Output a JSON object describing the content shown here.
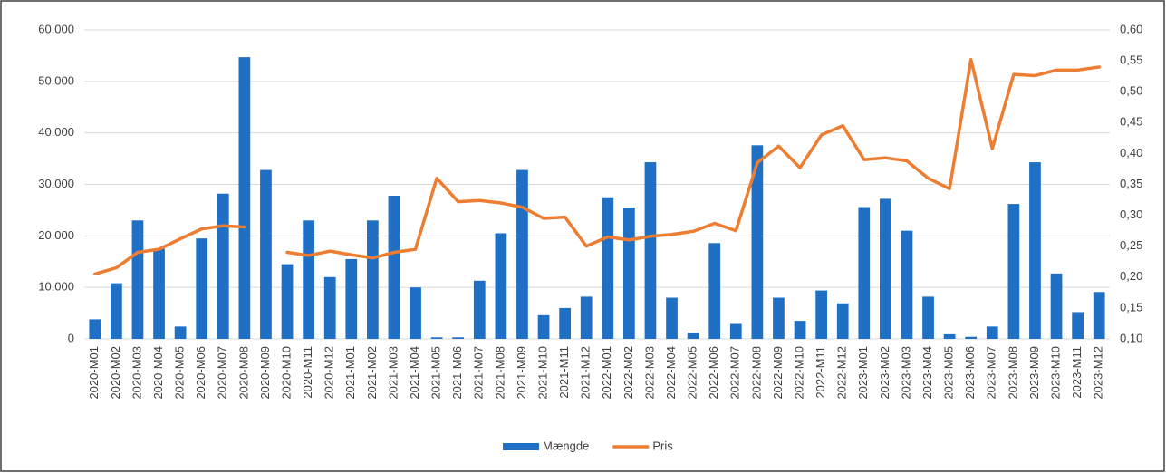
{
  "chart_data": {
    "type": "bar_line",
    "categories": [
      "2020-M01",
      "2020-M02",
      "2020-M03",
      "2020-M04",
      "2020-M05",
      "2020-M06",
      "2020-M07",
      "2020-M08",
      "2020-M09",
      "2020-M10",
      "2020-M11",
      "2020-M12",
      "2021-M01",
      "2021-M02",
      "2021-M03",
      "2021-M04",
      "2021-M05",
      "2021-M06",
      "2021-M07",
      "2021-M08",
      "2021-M09",
      "2021-M10",
      "2021-M11",
      "2021-M12",
      "2022-M01",
      "2022-M02",
      "2022-M03",
      "2022-M04",
      "2022-M05",
      "2022-M06",
      "2022-M07",
      "2022-M08",
      "2022-M09",
      "2022-M10",
      "2022-M11",
      "2022-M12",
      "2023-M01",
      "2023-M02",
      "2023-M03",
      "2023-M04",
      "2023-M05",
      "2023-M06",
      "2023-M07",
      "2023-M08",
      "2023-M09",
      "2023-M10",
      "2023-M11",
      "2023-M12"
    ],
    "series": [
      {
        "name": "Mængde",
        "type": "bar",
        "color": "#1f6fc5",
        "axis": "y",
        "values": [
          3800,
          10800,
          23000,
          17500,
          2400,
          19500,
          28200,
          54700,
          32800,
          14500,
          23000,
          12000,
          15500,
          23000,
          27800,
          10000,
          300,
          300,
          11300,
          20500,
          32800,
          4600,
          6000,
          8200,
          27500,
          25500,
          34300,
          8000,
          1200,
          18600,
          2900,
          37600,
          8000,
          3500,
          9400,
          6900,
          25600,
          27200,
          21000,
          8200,
          900,
          400,
          2400,
          26200,
          34300,
          12700,
          5200,
          9100
        ]
      },
      {
        "name": "Pris",
        "type": "line",
        "color": "#ed7d31",
        "axis": "y2",
        "values": [
          0.205,
          0.215,
          0.24,
          0.245,
          0.262,
          0.278,
          0.283,
          0.281,
          null,
          0.24,
          0.235,
          0.242,
          0.236,
          0.231,
          0.24,
          0.245,
          0.36,
          0.322,
          0.324,
          0.32,
          0.313,
          0.295,
          0.297,
          0.25,
          0.265,
          0.26,
          0.266,
          0.269,
          0.274,
          0.287,
          0.275,
          0.385,
          0.412,
          0.377,
          0.43,
          0.445,
          0.39,
          0.393,
          0.388,
          0.36,
          0.343,
          0.552,
          0.408,
          0.528,
          0.526,
          0.535,
          0.535,
          0.54
        ]
      }
    ],
    "ylim": [
      0,
      60000
    ],
    "yticks": [
      0,
      {
        "value": 10000,
        "label": "10.000"
      },
      {
        "value": 20000,
        "label": "20.000"
      },
      {
        "value": 30000,
        "label": "30.000"
      },
      {
        "value": 40000,
        "label": "40.000"
      },
      {
        "value": 50000,
        "label": "50.000"
      },
      {
        "value": 60000,
        "label": "60.000"
      }
    ],
    "y2lim": [
      0.1,
      0.6
    ],
    "y2ticks": [
      {
        "value": 0.1,
        "label": "0,10"
      },
      {
        "value": 0.15,
        "label": "0,15"
      },
      {
        "value": 0.2,
        "label": "0,20"
      },
      {
        "value": 0.25,
        "label": "0,25"
      },
      {
        "value": 0.3,
        "label": "0,30"
      },
      {
        "value": 0.35,
        "label": "0,35"
      },
      {
        "value": 0.4,
        "label": "0,40"
      },
      {
        "value": 0.45,
        "label": "0,45"
      },
      {
        "value": 0.5,
        "label": "0,50"
      },
      {
        "value": 0.55,
        "label": "0,55"
      },
      {
        "value": 0.6,
        "label": "0,60"
      }
    ],
    "grid": true,
    "legend": "bottom"
  }
}
